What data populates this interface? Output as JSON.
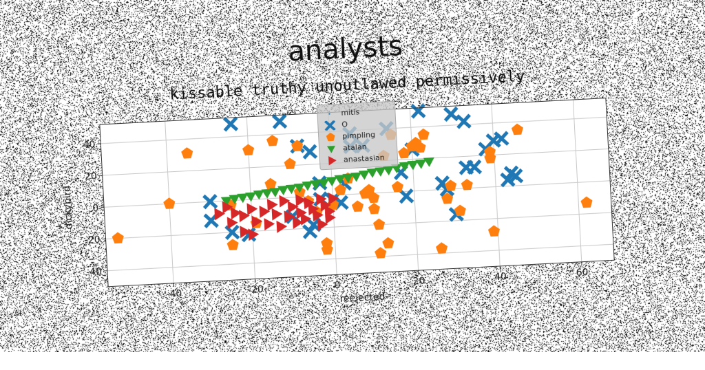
{
  "chart_data": {
    "type": "scatter",
    "title": "analysts",
    "subtitle": "kissable truthy unoutlawed permissively",
    "xlabel": "reejected",
    "ylabel": "dickybird",
    "xlim": [
      -56,
      68
    ],
    "ylim": [
      -50,
      52
    ],
    "xticks": [
      -40,
      -20,
      0,
      20,
      40,
      60
    ],
    "yticks": [
      -40,
      -20,
      0,
      20,
      40
    ],
    "grid": true,
    "legend_position": "top-center",
    "series": [
      {
        "name": "mitis",
        "marker": "point",
        "color": "#1f77b4",
        "points": []
      },
      {
        "name": "O",
        "marker": "x",
        "color": "#1f77b4",
        "points": [
          [
            -24,
            48
          ],
          [
            -12,
            48
          ],
          [
            -8,
            32
          ],
          [
            -5,
            28
          ],
          [
            -3,
            8
          ],
          [
            0,
            -3
          ],
          [
            2,
            -5
          ],
          [
            3,
            7
          ],
          [
            5,
            30
          ],
          [
            5,
            38
          ],
          [
            8,
            30
          ],
          [
            14,
            40
          ],
          [
            17,
            12
          ],
          [
            18,
            -3
          ],
          [
            20,
            26
          ],
          [
            22,
            50
          ],
          [
            30,
            47
          ],
          [
            33,
            42
          ],
          [
            33,
            13
          ],
          [
            35,
            13
          ],
          [
            27,
            4
          ],
          [
            28,
            0
          ],
          [
            38,
            24
          ],
          [
            40,
            29
          ],
          [
            42,
            30
          ],
          [
            43,
            4
          ],
          [
            44,
            8
          ],
          [
            45,
            6
          ],
          [
            30,
            -16
          ],
          [
            -30,
            0
          ],
          [
            -30,
            -12
          ],
          [
            -25,
            -20
          ],
          [
            -21,
            -22
          ],
          [
            -10,
            -12
          ],
          [
            -5,
            -18
          ],
          [
            -6,
            -22
          ],
          [
            -3,
            -2
          ]
        ]
      },
      {
        "name": "pimpling",
        "marker": "pentagon",
        "color": "#ff7f0e",
        "points": [
          [
            -53,
            -20
          ],
          [
            -40,
            0
          ],
          [
            -35,
            31
          ],
          [
            -25,
            -3
          ],
          [
            -25,
            -28
          ],
          [
            -20,
            31
          ],
          [
            -19,
            -15
          ],
          [
            -15,
            9
          ],
          [
            -14,
            36
          ],
          [
            -10,
            21
          ],
          [
            -8,
            32
          ],
          [
            -8,
            3
          ],
          [
            -6,
            -3
          ],
          [
            -4,
            -10
          ],
          [
            -2,
            -30
          ],
          [
            -2,
            -34
          ],
          [
            0,
            -6
          ],
          [
            2,
            3
          ],
          [
            4,
            10
          ],
          [
            6,
            -8
          ],
          [
            8,
            0
          ],
          [
            9,
            2
          ],
          [
            10,
            -3
          ],
          [
            10,
            -10
          ],
          [
            11,
            -20
          ],
          [
            11,
            -38
          ],
          [
            13,
            -32
          ],
          [
            13,
            23
          ],
          [
            15,
            36
          ],
          [
            16,
            3
          ],
          [
            18,
            24
          ],
          [
            20,
            28
          ],
          [
            21,
            30
          ],
          [
            22,
            27
          ],
          [
            23,
            35
          ],
          [
            26,
            -37
          ],
          [
            28,
            -6
          ],
          [
            29,
            2
          ],
          [
            31,
            -14
          ],
          [
            33,
            2
          ],
          [
            39,
            18
          ],
          [
            39,
            -28
          ],
          [
            39,
            22
          ],
          [
            46,
            35
          ],
          [
            62,
            -13
          ]
        ]
      },
      {
        "name": "atalan",
        "marker": "triangle-down",
        "color": "#2ca02c",
        "points": [
          [
            -26,
            0
          ],
          [
            -24,
            1
          ],
          [
            -22,
            1.5
          ],
          [
            -20,
            2
          ],
          [
            -18,
            3
          ],
          [
            -16,
            3.5
          ],
          [
            -14,
            4
          ],
          [
            -12,
            5
          ],
          [
            -10,
            5.5
          ],
          [
            -8,
            6
          ],
          [
            -6,
            7
          ],
          [
            -4,
            7.5
          ],
          [
            -2,
            8
          ],
          [
            0,
            9
          ],
          [
            2,
            10
          ],
          [
            4,
            10.5
          ],
          [
            6,
            11
          ],
          [
            8,
            12
          ],
          [
            10,
            13
          ],
          [
            12,
            13.5
          ],
          [
            14,
            14
          ],
          [
            16,
            15
          ],
          [
            18,
            16
          ],
          [
            20,
            16.5
          ],
          [
            22,
            17
          ],
          [
            24,
            18
          ]
        ]
      },
      {
        "name": "anastasian",
        "marker": "triangle-right",
        "color": "#d62728",
        "points": [
          [
            -26,
            -4
          ],
          [
            -24,
            -8
          ],
          [
            -25,
            -14
          ],
          [
            -22,
            -10
          ],
          [
            -22,
            -20
          ],
          [
            -20,
            -6
          ],
          [
            -19,
            -14
          ],
          [
            -17,
            -8
          ],
          [
            -16,
            -16
          ],
          [
            -15,
            -4
          ],
          [
            -14,
            -10
          ],
          [
            -13,
            -18
          ],
          [
            -12,
            -2
          ],
          [
            -11,
            -12
          ],
          [
            -10,
            -6
          ],
          [
            -9,
            -16
          ],
          [
            -8,
            -2
          ],
          [
            -8,
            -10
          ],
          [
            -7,
            -14
          ],
          [
            -6,
            -4
          ],
          [
            -5,
            -8
          ],
          [
            -4,
            -12
          ],
          [
            -3,
            -2
          ],
          [
            -3,
            -18
          ],
          [
            -2,
            -6
          ],
          [
            -1,
            -10
          ],
          [
            -1,
            -14
          ],
          [
            0,
            -2
          ],
          [
            -20,
            -22
          ],
          [
            -28,
            -8
          ]
        ]
      }
    ]
  }
}
